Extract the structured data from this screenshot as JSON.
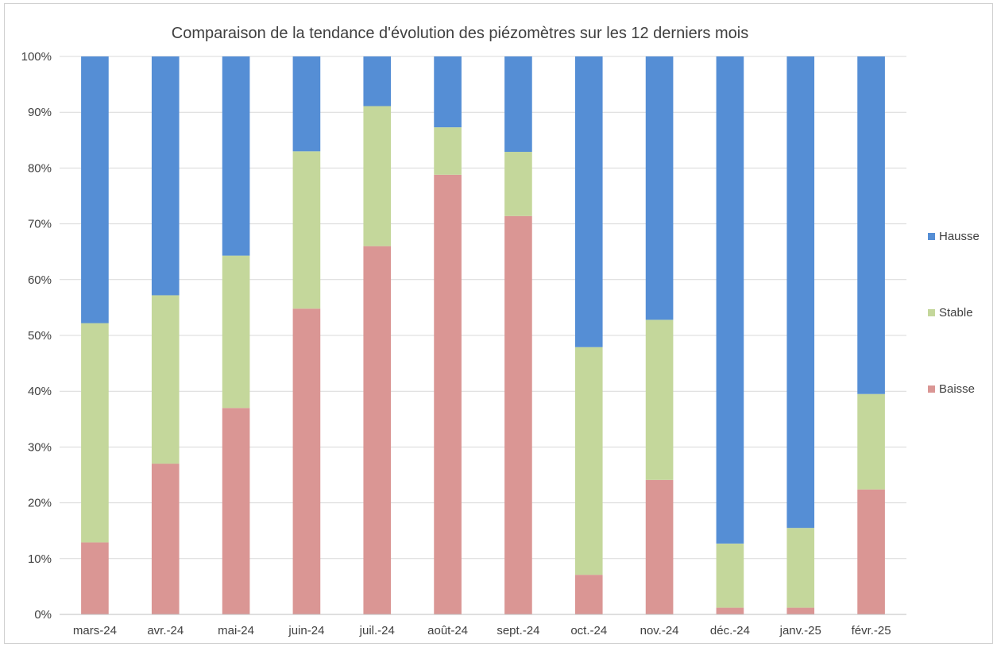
{
  "chart_data": {
    "type": "bar",
    "stacked": true,
    "percent": true,
    "title": "Comparaison de la tendance d'évolution des piézomètres sur les 12 derniers mois",
    "categories": [
      "mars-24",
      "avr.-24",
      "mai-24",
      "juin-24",
      "juil.-24",
      "août-24",
      "sept.-24",
      "oct.-24",
      "nov.-24",
      "déc.-24",
      "janv.-25",
      "févr.-25"
    ],
    "series": [
      {
        "name": "Baisse",
        "color": "#da9694",
        "values": [
          12.9,
          27.0,
          37.0,
          54.8,
          66.0,
          78.8,
          71.4,
          7.1,
          24.1,
          1.2,
          1.2,
          22.4
        ]
      },
      {
        "name": "Stable",
        "color": "#c4d79b",
        "values": [
          39.3,
          30.2,
          27.3,
          28.2,
          25.1,
          8.5,
          11.5,
          40.8,
          28.7,
          11.5,
          14.3,
          17.1
        ]
      },
      {
        "name": "Hausse",
        "color": "#558ed5",
        "values": [
          47.8,
          42.8,
          35.7,
          17.0,
          8.9,
          12.7,
          17.1,
          52.1,
          47.2,
          87.3,
          84.5,
          60.5
        ]
      }
    ],
    "ylim": [
      0,
      100
    ],
    "yticks": [
      "0%",
      "10%",
      "20%",
      "30%",
      "40%",
      "50%",
      "60%",
      "70%",
      "80%",
      "90%",
      "100%"
    ],
    "legend": {
      "position": "right",
      "order": [
        "Hausse",
        "Stable",
        "Baisse"
      ]
    },
    "grid": true,
    "colors": {
      "grid": "#d9d9d9",
      "axis": "#bfbfbf",
      "text": "#404040"
    }
  }
}
